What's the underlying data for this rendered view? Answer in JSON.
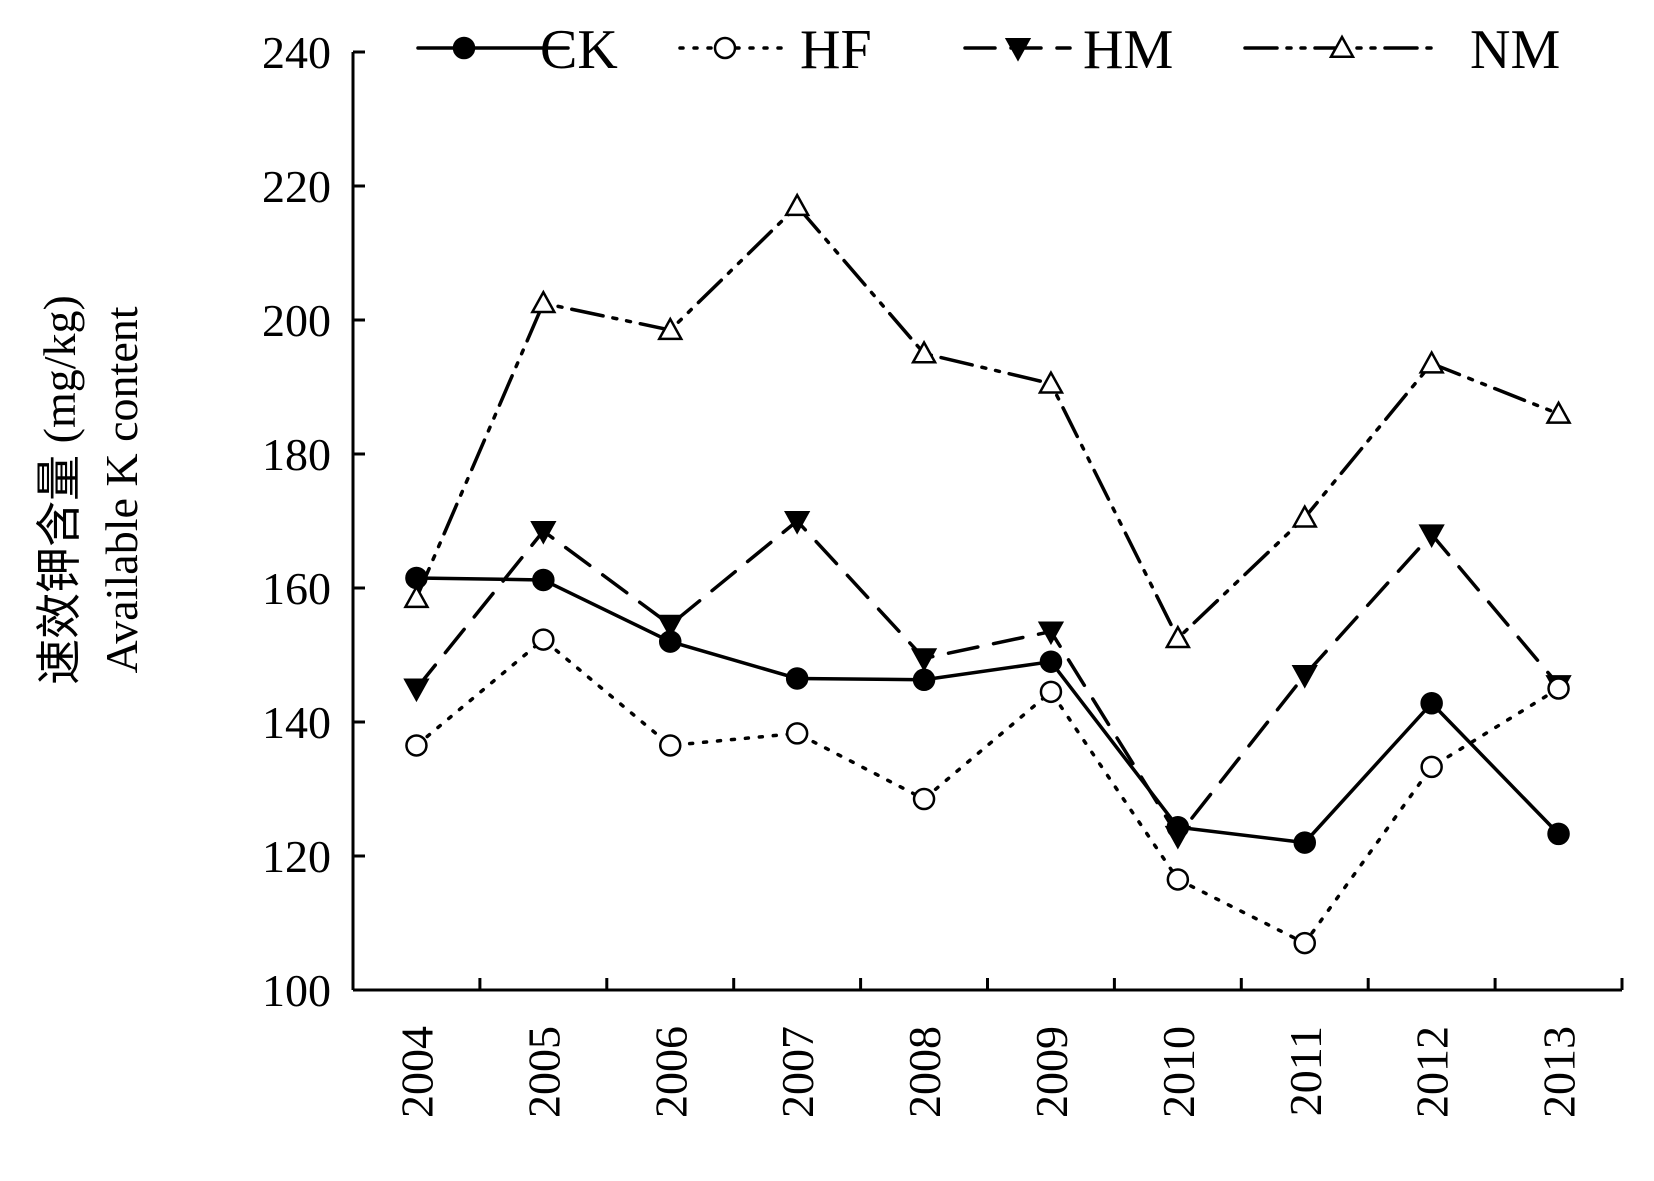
{
  "chart_data": {
    "type": "line",
    "ylabel_cn": "速效钾含量 (mg/kg)",
    "ylabel_en": "Available K content",
    "xlabel": "",
    "ylim": [
      100,
      240
    ],
    "yticks": [
      100,
      120,
      140,
      160,
      180,
      200,
      220,
      240
    ],
    "x": [
      "2004",
      "2005",
      "2006",
      "2007",
      "2008",
      "2009",
      "2010",
      "2011",
      "2012",
      "2013"
    ],
    "legend_position": "top",
    "grid": false,
    "series": [
      {
        "name": "CK",
        "style": "solid",
        "marker": "filled-circle",
        "values": [
          161.5,
          161.2,
          152.0,
          146.5,
          146.3,
          149.0,
          124.3,
          122.0,
          142.8,
          123.3
        ]
      },
      {
        "name": "HF",
        "style": "dotted",
        "marker": "open-circle",
        "values": [
          136.5,
          152.3,
          136.5,
          138.3,
          128.5,
          144.5,
          116.5,
          107.0,
          133.3,
          145.0
        ]
      },
      {
        "name": "HM",
        "style": "dashed",
        "marker": "filled-triangle-down",
        "values": [
          145.0,
          168.5,
          154.5,
          170.0,
          149.5,
          153.5,
          123.0,
          147.0,
          168.0,
          145.5
        ]
      },
      {
        "name": "NM",
        "style": "dash-dot-dot",
        "marker": "open-triangle-up",
        "values": [
          158.5,
          202.5,
          198.5,
          217.0,
          195.0,
          190.5,
          152.5,
          170.5,
          193.5,
          186.0
        ]
      }
    ]
  }
}
